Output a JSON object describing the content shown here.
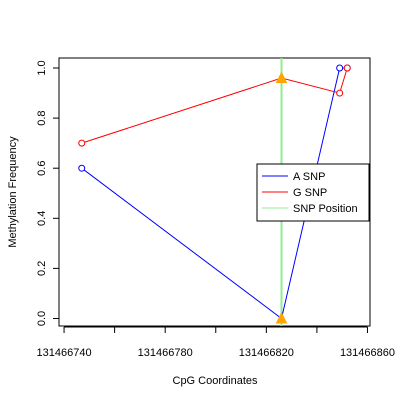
{
  "chart_data": {
    "type": "line",
    "title": "",
    "xlabel": "CpG Coordinates",
    "ylabel": "Methylation Frequency",
    "xlim": [
      131466738,
      131466861
    ],
    "ylim": [
      -0.03,
      1.04
    ],
    "x_ticks": [
      131466740,
      131466760,
      131466780,
      131466800,
      131466820,
      131466840,
      131466860
    ],
    "x_tick_labels": [
      "131466740",
      "",
      "131466780",
      "",
      "131466820",
      "",
      "131466860"
    ],
    "y_ticks": [
      0.0,
      0.2,
      0.4,
      0.6,
      0.8,
      1.0
    ],
    "y_tick_labels": [
      "0.0",
      "0.2",
      "0.4",
      "0.6",
      "0.8",
      "1.0"
    ],
    "snp_position": 131466826,
    "series": [
      {
        "name": "A SNP",
        "color": "#0000ff",
        "x": [
          131466747,
          131466826,
          131466849,
          131466852
        ],
        "y": [
          0.6,
          0.0,
          1.0,
          1.0
        ],
        "highlight_index": 1
      },
      {
        "name": "G SNP",
        "color": "#ff0000",
        "x": [
          131466747,
          131466826,
          131466849,
          131466852
        ],
        "y": [
          0.7,
          0.96,
          0.9,
          1.0
        ],
        "highlight_index": 1
      }
    ],
    "snp_line": {
      "name": "SNP Position",
      "color": "#90ee90"
    },
    "highlight_marker_color": "#ffa500",
    "legend": {
      "placement": "right",
      "entries": [
        "A SNP",
        "G SNP",
        "SNP Position"
      ]
    },
    "grid": false
  }
}
